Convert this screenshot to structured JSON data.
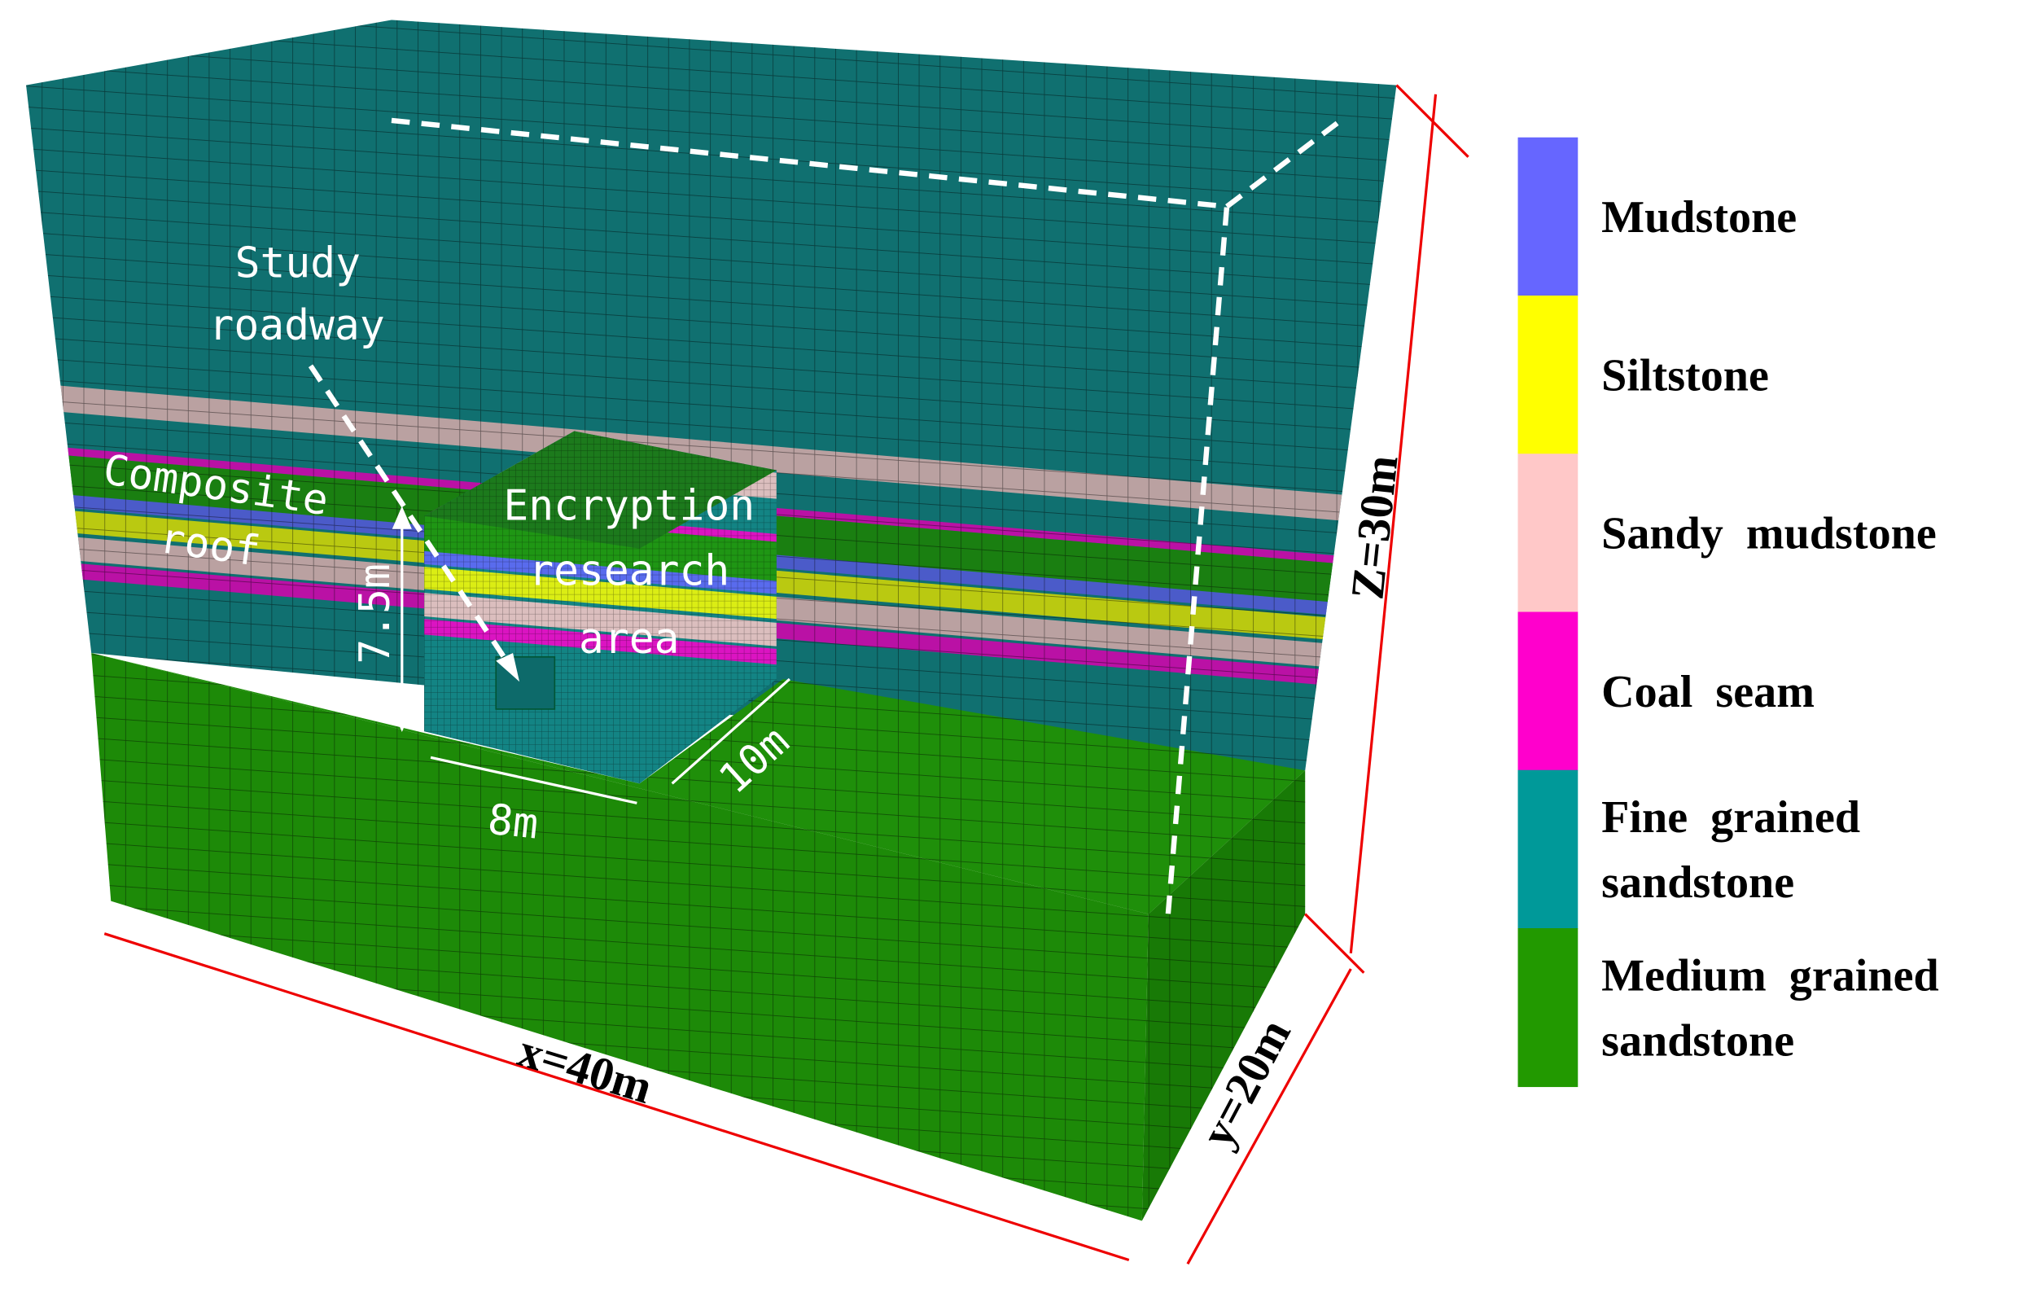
{
  "annotations": {
    "study_roadway": [
      "Study",
      "roadway"
    ],
    "composite_roof": [
      "Composite",
      "roof"
    ],
    "encryption_area": [
      "Encryption",
      "research",
      "area"
    ]
  },
  "dimensions": {
    "height": "7.5m",
    "width": "8m",
    "depth": "10m",
    "x": "x=40m",
    "y": "y=20m",
    "z": "Z=30m"
  },
  "legend": [
    {
      "lines": [
        "Mudstone"
      ],
      "color": "#6666ff"
    },
    {
      "lines": [
        "Siltstone"
      ],
      "color": "#ffff00"
    },
    {
      "lines": [
        "Sandy  mudstone"
      ],
      "color": "#ffc8c8"
    },
    {
      "lines": [
        "Coal  seam"
      ],
      "color": "#ff00cc"
    },
    {
      "lines": [
        "Fine  grained",
        "sandstone"
      ],
      "color": "#009999"
    },
    {
      "lines": [
        "Medium  grained",
        "sandstone"
      ],
      "color": "#229900"
    }
  ]
}
